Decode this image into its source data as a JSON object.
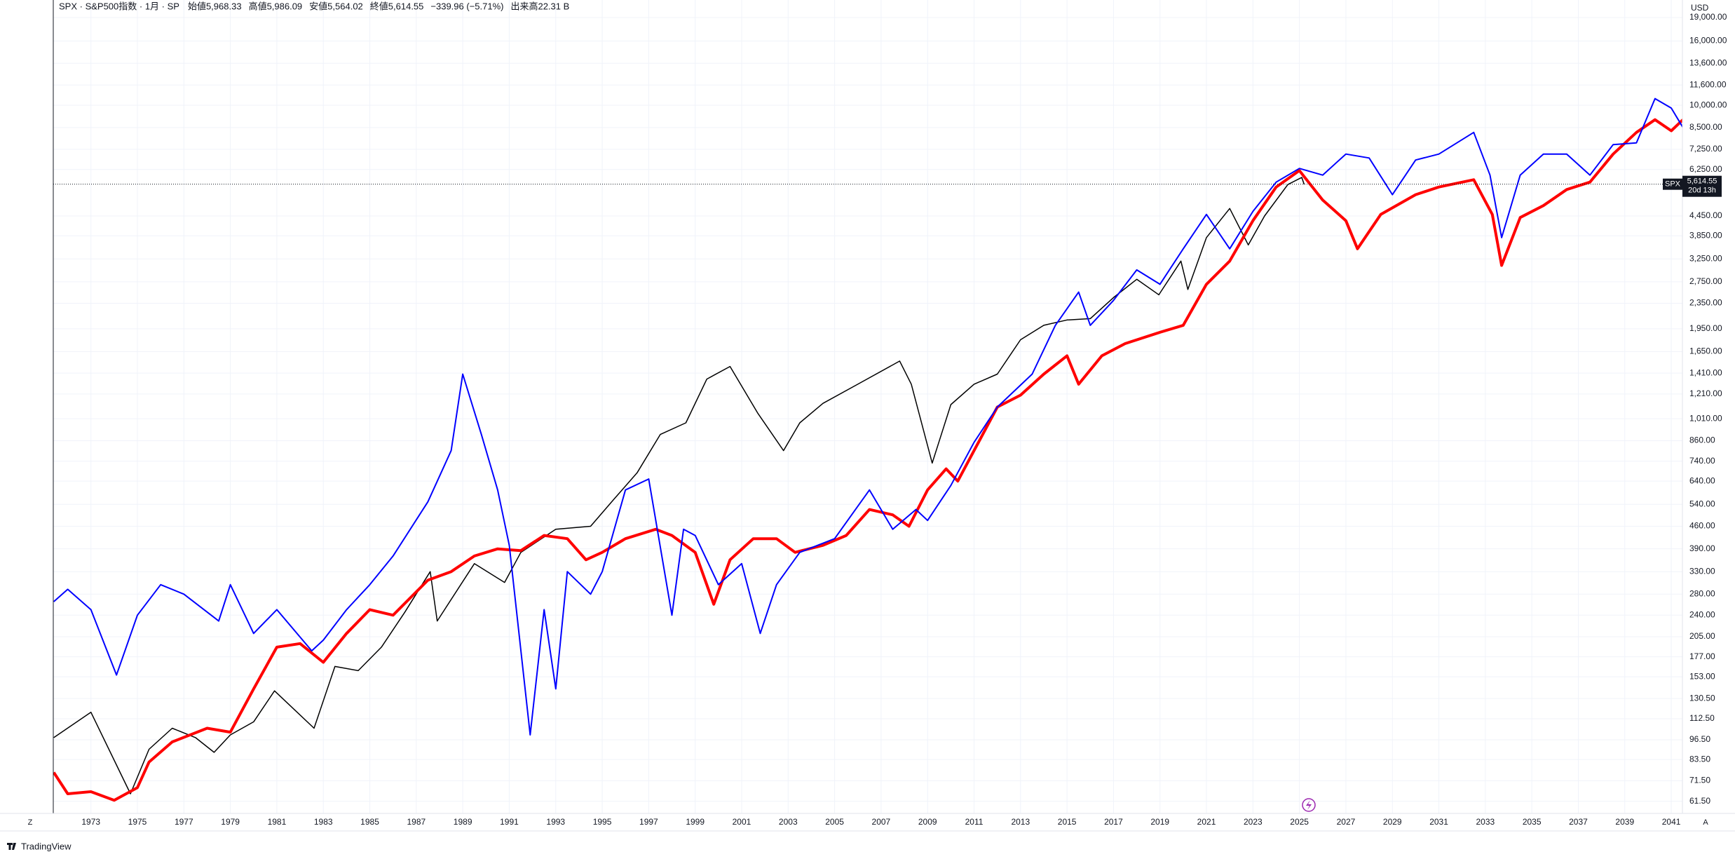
{
  "header": {
    "symbol": "SPX · S&P500指数 · 1月 · SP",
    "ohlc": [
      "始値5,968.33",
      "高値5,986.09",
      "安値5,564.02",
      "終値5,614.55",
      "−339.96 (−5.71%)",
      "出来高22.31 B"
    ]
  },
  "currency": "USD",
  "brand": "TradingView",
  "buttons": [
    "Z",
    "A"
  ],
  "chart_data": {
    "type": "line",
    "log_scale": true,
    "grid": true,
    "xlim": [
      1971.38,
      2041.48
    ],
    "xticks": [
      1973,
      1975,
      1977,
      1979,
      1981,
      1983,
      1985,
      1987,
      1989,
      1991,
      1993,
      1995,
      1997,
      1999,
      2001,
      2003,
      2005,
      2007,
      2009,
      2011,
      2013,
      2015,
      2017,
      2019,
      2021,
      2023,
      2025,
      2027,
      2029,
      2031,
      2033,
      2035,
      2037,
      2039,
      2041
    ],
    "ylim": [
      56.3,
      21600
    ],
    "yticks": [
      {
        "value": 61.5,
        "label": "61.50"
      },
      {
        "value": 71.5,
        "label": "71.50"
      },
      {
        "value": 83.5,
        "label": "83.50"
      },
      {
        "value": 96.5,
        "label": "96.50"
      },
      {
        "value": 112.5,
        "label": "112.50"
      },
      {
        "value": 130.5,
        "label": "130.50"
      },
      {
        "value": 153,
        "label": "153.00"
      },
      {
        "value": 177,
        "label": "177.00"
      },
      {
        "value": 205,
        "label": "205.00"
      },
      {
        "value": 240,
        "label": "240.00"
      },
      {
        "value": 280,
        "label": "280.00"
      },
      {
        "value": 330,
        "label": "330.00"
      },
      {
        "value": 390,
        "label": "390.00"
      },
      {
        "value": 460,
        "label": "460.00"
      },
      {
        "value": 540,
        "label": "540.00"
      },
      {
        "value": 640,
        "label": "640.00"
      },
      {
        "value": 740,
        "label": "740.00"
      },
      {
        "value": 860,
        "label": "860.00"
      },
      {
        "value": 1010,
        "label": "1,010.00"
      },
      {
        "value": 1210,
        "label": "1,210.00"
      },
      {
        "value": 1410,
        "label": "1,410.00"
      },
      {
        "value": 1650,
        "label": "1,650.00"
      },
      {
        "value": 1950,
        "label": "1,950.00"
      },
      {
        "value": 2350,
        "label": "2,350.00"
      },
      {
        "value": 2750,
        "label": "2,750.00"
      },
      {
        "value": 3250,
        "label": "3,250.00"
      },
      {
        "value": 3850,
        "label": "3,850.00"
      },
      {
        "value": 4450,
        "label": "4,450.00"
      },
      {
        "value": 6250,
        "label": "6,250.00"
      },
      {
        "value": 7250,
        "label": "7,250.00"
      },
      {
        "value": 8500,
        "label": "8,500.00"
      },
      {
        "value": 10000,
        "label": "10,000.00"
      },
      {
        "value": 11600,
        "label": "11,600.00"
      },
      {
        "value": 13600,
        "label": "13,600.00"
      },
      {
        "value": 16000,
        "label": "16,000.00"
      },
      {
        "value": 19000,
        "label": "19,000.00"
      }
    ],
    "last_price": {
      "value": 5614.55,
      "label": "5,614.55",
      "symbol": "SPX",
      "countdown": "20d 13h"
    },
    "series": [
      {
        "color": "#000000",
        "width": 1.5,
        "x": [
          1971.4,
          1973,
          1974.7,
          1975.5,
          1976.5,
          1977.5,
          1978.3,
          1979,
          1980,
          1980.9,
          1982.6,
          1983.5,
          1984.5,
          1985.5,
          1986.5,
          1987.6,
          1987.9,
          1989.5,
          1990.8,
          1991.5,
          1993,
          1994.5,
          1995.5,
          1996.5,
          1997.5,
          1998.6,
          1999.5,
          2000.5,
          2001.7,
          2002.8,
          2003.5,
          2004.5,
          2006,
          2007.8,
          2008.3,
          2009.2,
          2010,
          2011,
          2012,
          2013,
          2014,
          2015,
          2016,
          2017,
          2018,
          2018.95,
          2019.9,
          2020.2,
          2021,
          2022,
          2022.8,
          2023.5,
          2024.5,
          2025.1,
          2025.2
        ],
        "values": [
          98,
          118,
          65,
          90,
          105,
          98,
          88,
          100,
          110,
          138,
          105,
          165,
          160,
          190,
          245,
          330,
          230,
          350,
          305,
          380,
          450,
          460,
          560,
          680,
          900,
          980,
          1350,
          1480,
          1050,
          800,
          980,
          1130,
          1300,
          1540,
          1300,
          730,
          1120,
          1300,
          1400,
          1800,
          2000,
          2080,
          2100,
          2450,
          2800,
          2500,
          3200,
          2600,
          3800,
          4700,
          3600,
          4450,
          5600,
          5900,
          5614
        ]
      },
      {
        "color": "#ff0000",
        "width": 4,
        "x": [
          1971.4,
          1972,
          1973,
          1974,
          1975,
          1975.5,
          1976.5,
          1978,
          1979,
          1980,
          1981,
          1982,
          1983,
          1984,
          1985,
          1986,
          1987.5,
          1988.5,
          1989.5,
          1990.5,
          1991.5,
          1992.5,
          1993.5,
          1994.3,
          1995,
          1996,
          1997.3,
          1998,
          1999,
          1999.8,
          2000.5,
          2001.5,
          2002.5,
          2003.3,
          2004.5,
          2005.5,
          2006.5,
          2007.5,
          2008.2,
          2009,
          2009.8,
          2010.3,
          2011,
          2012,
          2013,
          2014,
          2015,
          2015.5,
          2016.5,
          2017.5,
          2019,
          2020,
          2021,
          2022,
          2023,
          2024,
          2025,
          2026,
          2027,
          2027.5,
          2028.5,
          2030,
          2031,
          2032.5,
          2033.3,
          2033.7,
          2034.5,
          2035.5,
          2036.5,
          2037.5,
          2038.5,
          2039.5,
          2040.3,
          2041,
          2041.5
        ],
        "values": [
          76,
          65,
          66,
          62,
          68,
          82,
          95,
          105,
          102,
          140,
          190,
          195,
          170,
          210,
          250,
          240,
          310,
          330,
          370,
          390,
          385,
          430,
          420,
          360,
          380,
          420,
          450,
          430,
          380,
          260,
          360,
          420,
          420,
          380,
          400,
          430,
          520,
          500,
          460,
          600,
          700,
          640,
          800,
          1100,
          1200,
          1400,
          1600,
          1300,
          1600,
          1750,
          1900,
          2000,
          2700,
          3200,
          4300,
          5500,
          6200,
          5000,
          4300,
          3500,
          4500,
          5200,
          5500,
          5800,
          4500,
          3100,
          4400,
          4800,
          5400,
          5700,
          7000,
          8200,
          9000,
          8300,
          9000
        ]
      },
      {
        "color": "#0000ff",
        "width": 2,
        "x": [
          1971.4,
          1972,
          1973,
          1974.1,
          1975,
          1976,
          1977,
          1978.5,
          1979,
          1980,
          1981,
          1982.5,
          1983,
          1984,
          1985,
          1986,
          1987.5,
          1988.5,
          1989,
          1989.8,
          1990.5,
          1991,
          1991.9,
          1992.5,
          1993,
          1993.5,
          1994.5,
          1995,
          1996,
          1997,
          1998,
          1998.5,
          1999,
          2000,
          2001,
          2001.8,
          2002.5,
          2003.5,
          2005,
          2006.5,
          2007.5,
          2008.5,
          2009,
          2010,
          2011,
          2012,
          2013.5,
          2014.5,
          2015.5,
          2016,
          2017,
          2018,
          2019,
          2020,
          2021,
          2022,
          2023,
          2024,
          2025,
          2026,
          2027,
          2028,
          2029,
          2030,
          2031,
          2032.5,
          2033.2,
          2033.7,
          2034.5,
          2035.5,
          2036.5,
          2037.5,
          2038.5,
          2039.5,
          2040.3,
          2041,
          2041.5
        ],
        "values": [
          265,
          290,
          250,
          155,
          240,
          300,
          280,
          230,
          300,
          210,
          250,
          185,
          200,
          250,
          300,
          370,
          550,
          800,
          1400,
          900,
          600,
          400,
          100,
          250,
          140,
          330,
          280,
          330,
          600,
          650,
          240,
          450,
          430,
          300,
          350,
          210,
          300,
          380,
          420,
          600,
          450,
          520,
          480,
          620,
          850,
          1100,
          1400,
          2000,
          2550,
          2000,
          2400,
          3000,
          2700,
          3500,
          4500,
          3500,
          4600,
          5700,
          6300,
          6000,
          7000,
          6800,
          5200,
          6700,
          7000,
          8200,
          6000,
          3800,
          6000,
          7000,
          7000,
          6000,
          7500,
          7600,
          10500,
          9800,
          8500
        ]
      }
    ]
  }
}
